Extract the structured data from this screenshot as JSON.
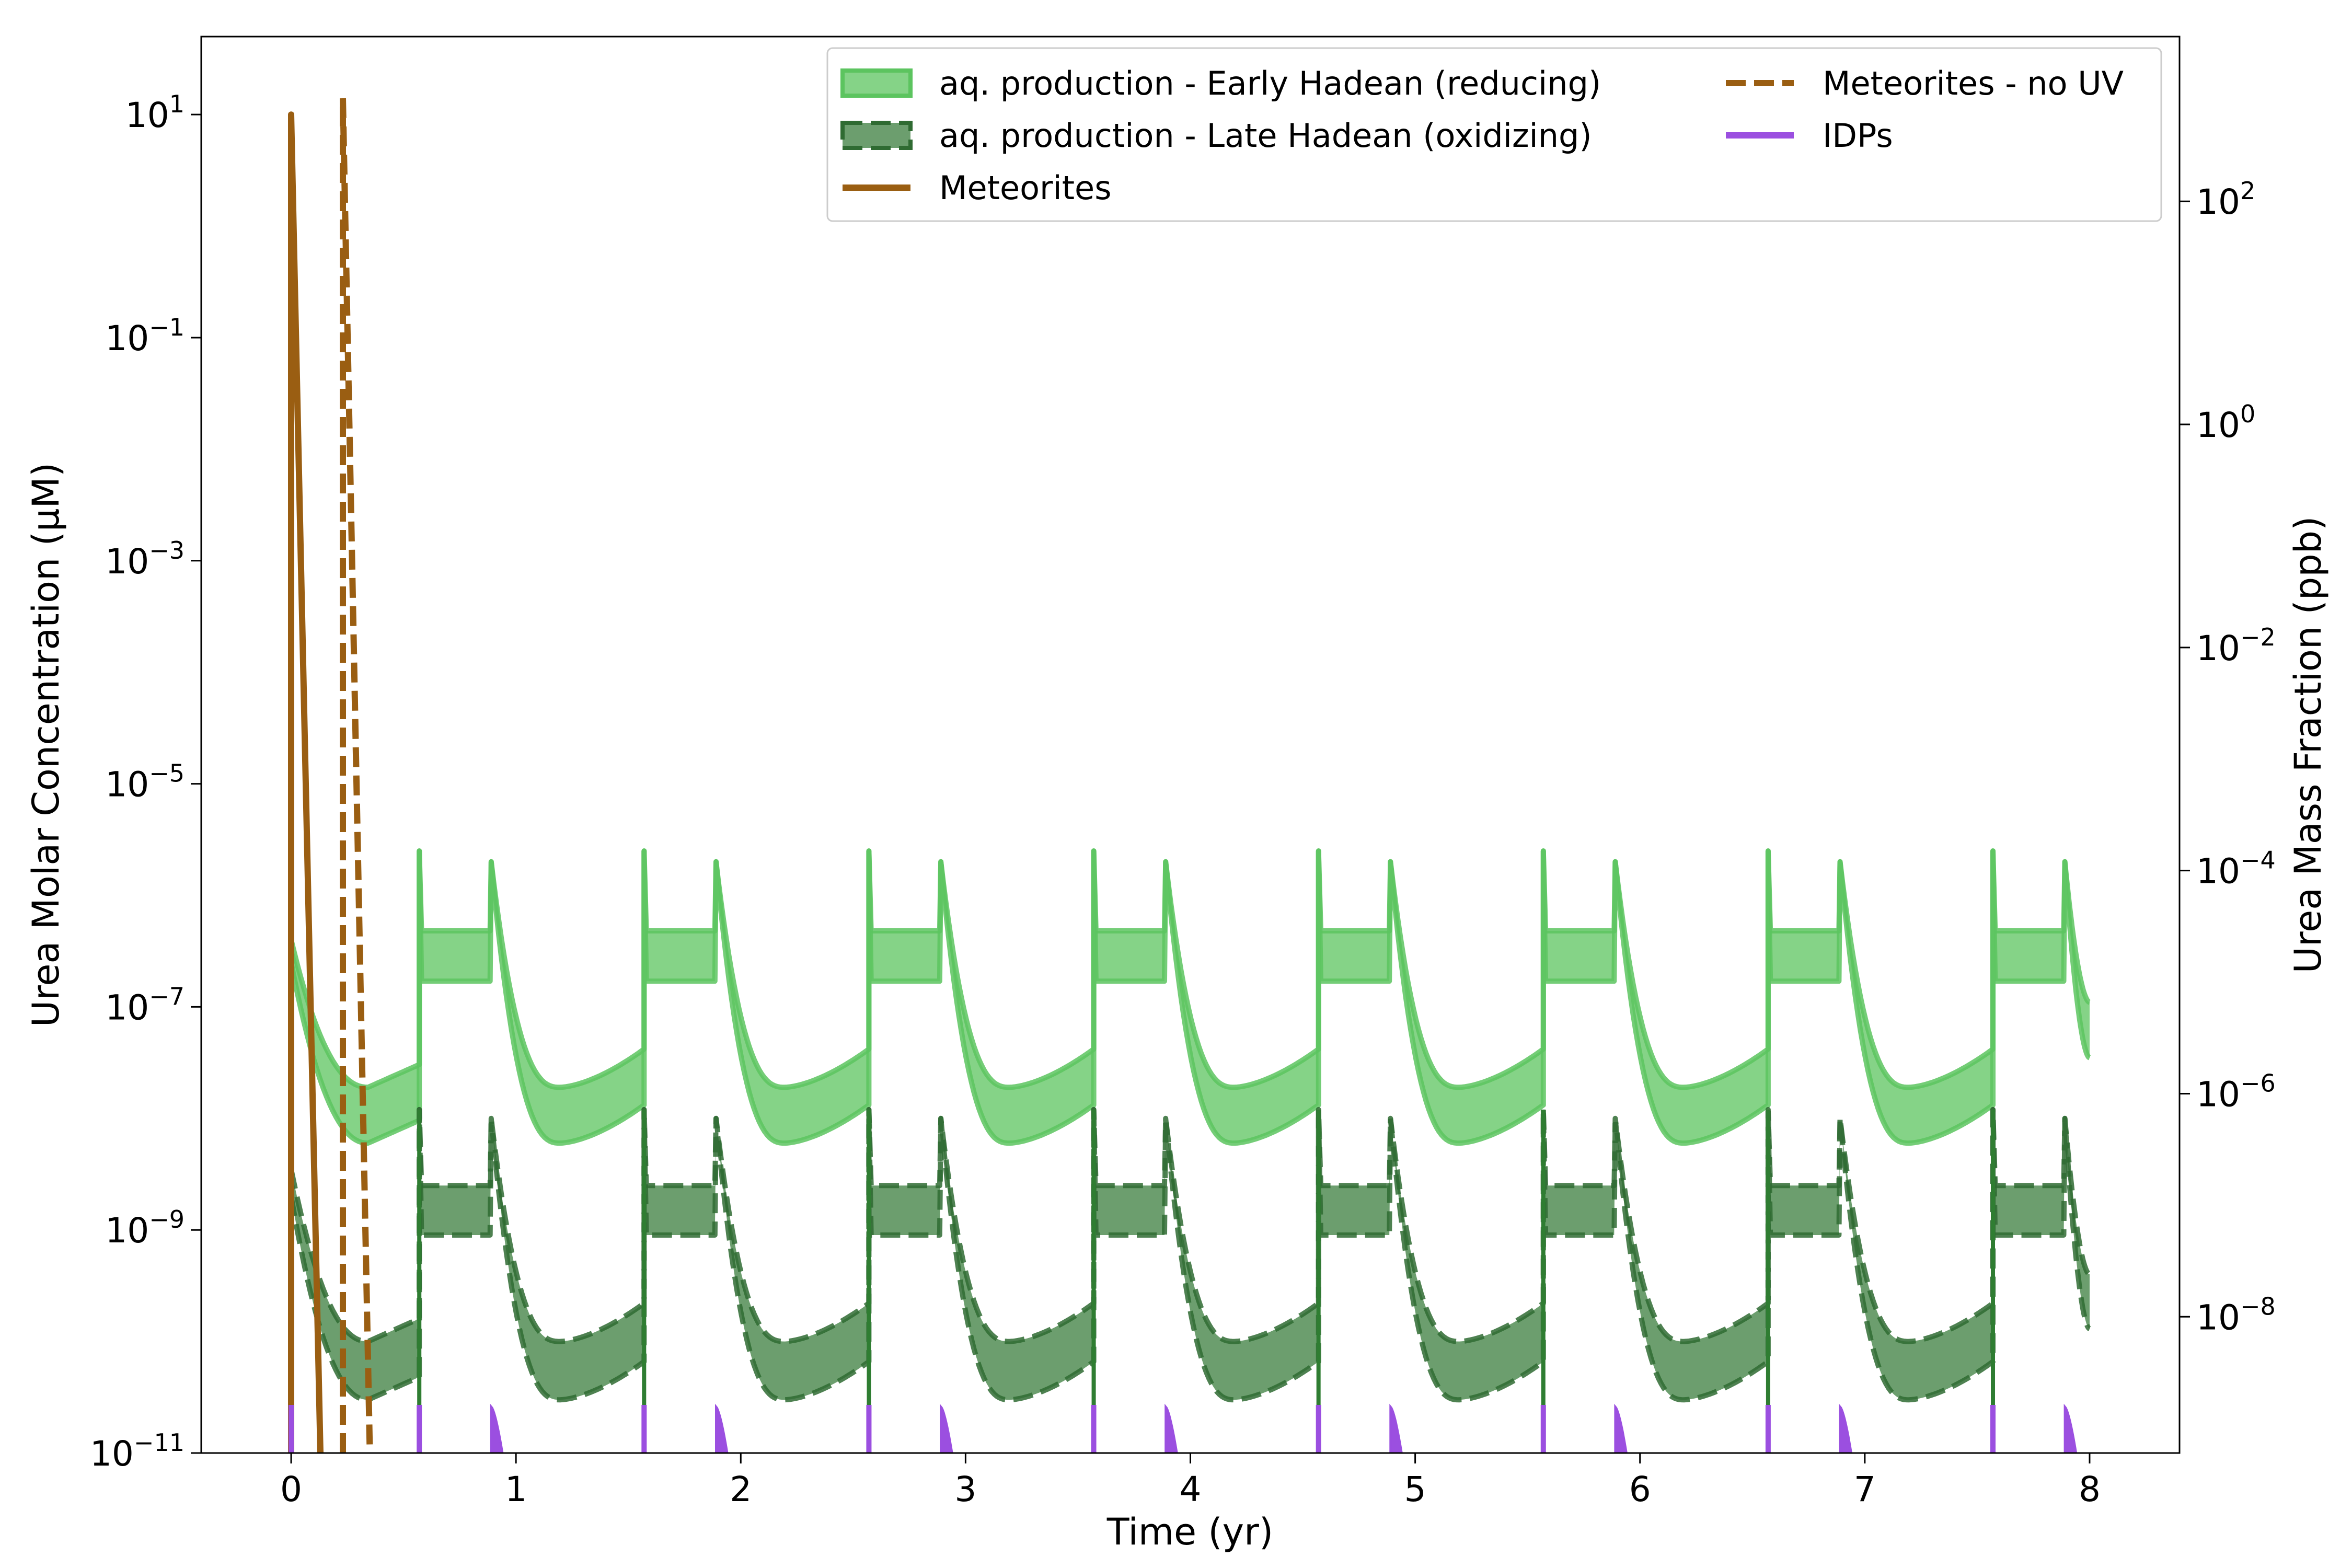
{
  "chart_data": {
    "type": "line",
    "xlabel": "Time (yr)",
    "ylabel_left": "Urea Molar Concentration (μM)",
    "ylabel_right": "Urea Mass Fraction (ppb)",
    "xlim": [
      -0.4,
      8.4
    ],
    "x_ticks": [
      0,
      1,
      2,
      3,
      4,
      5,
      6,
      7,
      8
    ],
    "y_left": {
      "scale": "log",
      "ylim": [
        1e-11,
        50
      ],
      "ticks": [
        {
          "value": 1e-11,
          "label": "10",
          "exp": "−11"
        },
        {
          "value": 1e-09,
          "label": "10",
          "exp": "−9"
        },
        {
          "value": 1e-07,
          "label": "10",
          "exp": "−7"
        },
        {
          "value": 1e-05,
          "label": "10",
          "exp": "−5"
        },
        {
          "value": 0.001,
          "label": "10",
          "exp": "−3"
        },
        {
          "value": 0.1,
          "label": "10",
          "exp": "−1"
        },
        {
          "value": 10,
          "label": "10",
          "exp": "1"
        }
      ]
    },
    "y_right": {
      "scale": "log",
      "ticks": [
        {
          "value": 1e-08,
          "label": "10",
          "exp": "−8"
        },
        {
          "value": 1e-06,
          "label": "10",
          "exp": "−6"
        },
        {
          "value": 0.0001,
          "label": "10",
          "exp": "−4"
        },
        {
          "value": 0.01,
          "label": "10",
          "exp": "−2"
        },
        {
          "value": 1,
          "label": "10",
          "exp": "0"
        },
        {
          "value": 100,
          "label": "10",
          "exp": "2"
        }
      ],
      "ppb_per_uM": 60
    },
    "cycle": {
      "period_yr": 1.0,
      "dry_start": 0.57,
      "wet_start": 0.89,
      "end_x": 8.0
    },
    "series": [
      {
        "name": "aq. production - Early Hadean (reducing)",
        "style": "band",
        "color": "#5cc45f",
        "edge_color": "#5cc45f",
        "dashed": false,
        "plateau": [
          1.7e-07,
          4.8e-07
        ],
        "wet_peak": 2e-06,
        "spike_top": 2.5e-06,
        "min": [
          6e-09,
          1.9e-08
        ],
        "start": [
          2.5e-07,
          4e-07
        ],
        "end": [
          3.5e-08,
          1.1e-07
        ]
      },
      {
        "name": "aq. production - Late Hadean (oxidizing)",
        "style": "band",
        "color": "#3b7d3e",
        "edge_color": "#2f6b32",
        "dashed": true,
        "plateau": [
          9e-10,
          2.5e-09
        ],
        "wet_peak": 1e-08,
        "spike_top": 1.2e-08,
        "min": [
          3e-11,
          1e-10
        ],
        "start": [
          2e-09,
          3.5e-09
        ],
        "end": [
          1.3e-10,
          4e-10
        ]
      },
      {
        "name": "Meteorites",
        "style": "line",
        "color": "#9a5e12",
        "dashed": false,
        "x": [
          0.0,
          0.0,
          0.13
        ],
        "y": [
          1e-11,
          10,
          1e-11
        ]
      },
      {
        "name": "Meteorites - no UV",
        "style": "line",
        "color": "#9a5e12",
        "dashed": true,
        "x": [
          0.23,
          0.23,
          0.35
        ],
        "y": [
          1e-11,
          14,
          1e-11
        ]
      },
      {
        "name": "IDPs",
        "style": "spikes",
        "color": "#9b4fe0",
        "height": 2.7e-11,
        "wet_height": 2.6e-11
      }
    ],
    "legend": {
      "placement": "top-right",
      "columns": 2,
      "entries": [
        "aq. production - Early Hadean (reducing)",
        "aq. production - Late Hadean (oxidizing)",
        "Meteorites",
        "Meteorites - no UV",
        "IDPs"
      ]
    },
    "grid": false
  }
}
